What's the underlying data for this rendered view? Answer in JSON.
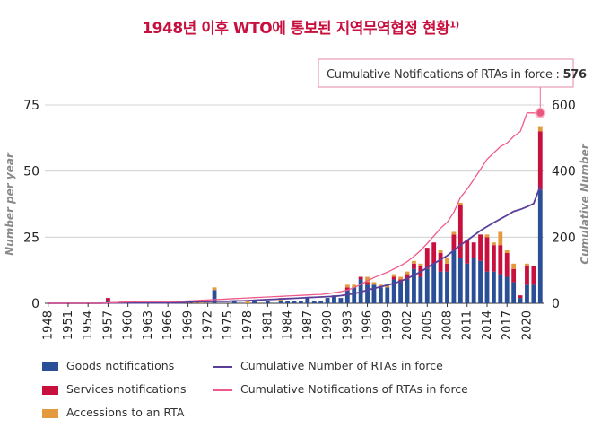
{
  "title": "1948년 이후 WTO에 통보된 지역무역협정 현황",
  "title_footnote": "1)",
  "callout": {
    "label": "Cumulative Notifications of RTAs in force : ",
    "value": "576"
  },
  "chart_data": {
    "type": "bar",
    "ylabel": "Number per year",
    "y2label": "Cumulative Number",
    "ylim": [
      0,
      75
    ],
    "y2lim": [
      0,
      600
    ],
    "yticks": [
      0,
      25,
      50,
      75
    ],
    "y2ticks": [
      0,
      200,
      400,
      600
    ],
    "xtick_labels": [
      "1948",
      "1951",
      "1954",
      "1957",
      "1960",
      "1963",
      "1966",
      "1969",
      "1972",
      "1975",
      "1978",
      "1981",
      "1984",
      "1987",
      "1990",
      "1993",
      "1996",
      "1999",
      "2002",
      "2005",
      "2008",
      "2011",
      "2014",
      "2017",
      "2020"
    ],
    "x": [
      1948,
      1949,
      1950,
      1951,
      1952,
      1953,
      1954,
      1955,
      1956,
      1957,
      1958,
      1959,
      1960,
      1961,
      1962,
      1963,
      1964,
      1965,
      1966,
      1967,
      1968,
      1969,
      1970,
      1971,
      1972,
      1973,
      1974,
      1975,
      1976,
      1977,
      1978,
      1979,
      1980,
      1981,
      1982,
      1983,
      1984,
      1985,
      1986,
      1987,
      1988,
      1989,
      1990,
      1991,
      1992,
      1993,
      1994,
      1995,
      1996,
      1997,
      1998,
      1999,
      2000,
      2001,
      2002,
      2003,
      2004,
      2005,
      2006,
      2007,
      2008,
      2009,
      2010,
      2011,
      2012,
      2013,
      2014,
      2015,
      2016,
      2017,
      2018,
      2019,
      2020,
      2021,
      2022
    ],
    "series": [
      {
        "name": "Goods notifications",
        "color": "#2a4f97",
        "kind": "bar",
        "values": [
          0,
          0,
          0,
          0,
          0,
          0,
          0,
          0,
          0,
          1,
          0,
          0,
          0,
          0,
          0,
          0,
          0,
          0,
          0,
          0,
          0,
          0,
          0,
          0,
          0,
          5,
          0,
          0,
          1,
          0,
          0,
          1,
          0,
          1,
          0,
          1,
          1,
          1,
          1,
          2,
          1,
          1,
          2,
          3,
          2,
          5,
          6,
          9,
          7,
          7,
          6,
          6,
          9,
          8,
          9,
          13,
          10,
          13,
          15,
          12,
          12,
          20,
          17,
          15,
          17,
          16,
          12,
          12,
          11,
          10,
          8,
          2,
          7,
          7,
          43
        ]
      },
      {
        "name": "Services notifications",
        "color": "#c8103e",
        "kind": "bar",
        "values": [
          0,
          0,
          0,
          0,
          0,
          0,
          0,
          0,
          0,
          1,
          0,
          0,
          0,
          0,
          0,
          0,
          0,
          0,
          0,
          0,
          0,
          0,
          0,
          0,
          0,
          0,
          0,
          0,
          0,
          0,
          0,
          0,
          0,
          0,
          0,
          0,
          0,
          0,
          0,
          0,
          0,
          0,
          0,
          0,
          0,
          1,
          0,
          1,
          1,
          0,
          0,
          0,
          1,
          1,
          2,
          2,
          4,
          8,
          8,
          7,
          3,
          6,
          20,
          9,
          6,
          10,
          13,
          10,
          11,
          9,
          5,
          1,
          7,
          7,
          22
        ]
      },
      {
        "name": "Accessions to an RTA",
        "color": "#e39a3e",
        "kind": "bar",
        "values": [
          0,
          0,
          0,
          0,
          0,
          0,
          0,
          0,
          0,
          0,
          0,
          1,
          1,
          1,
          0,
          0,
          0,
          0,
          0,
          0,
          0,
          1,
          1,
          1,
          0,
          1,
          0,
          0,
          0,
          0,
          1,
          0,
          0,
          0,
          0,
          1,
          0,
          0,
          0,
          0,
          0,
          0,
          0,
          0,
          0,
          1,
          1,
          0,
          2,
          1,
          1,
          1,
          1,
          1,
          1,
          1,
          1,
          0,
          0,
          1,
          2,
          1,
          1,
          0,
          0,
          0,
          1,
          1,
          5,
          1,
          2,
          0,
          1,
          0,
          2
        ]
      },
      {
        "name": "Cumulative Number of RTAs in force",
        "color": "#5a3f9a",
        "kind": "line",
        "values": [
          0,
          0,
          0,
          0,
          0,
          0,
          0,
          0,
          0,
          1,
          1,
          1,
          1,
          1,
          1,
          1,
          1,
          1,
          1,
          2,
          2,
          3,
          4,
          5,
          5,
          6,
          6,
          6,
          7,
          7,
          8,
          9,
          10,
          11,
          12,
          13,
          14,
          15,
          16,
          17,
          18,
          19,
          20,
          21,
          23,
          26,
          29,
          34,
          40,
          45,
          50,
          55,
          60,
          67,
          75,
          85,
          95,
          108,
          120,
          132,
          144,
          160,
          176,
          190,
          205,
          220,
          232,
          244,
          255,
          266,
          278,
          284,
          292,
          302,
          355
        ]
      },
      {
        "name": "Cumulative Notifications of RTAs in force",
        "color": "#ee5a8a",
        "kind": "line",
        "values": [
          0,
          0,
          0,
          0,
          0,
          0,
          0,
          0,
          0,
          2,
          2,
          3,
          4,
          5,
          5,
          5,
          5,
          5,
          5,
          5,
          6,
          7,
          8,
          9,
          10,
          11,
          12,
          13,
          14,
          15,
          16,
          17,
          18,
          19,
          20,
          21,
          22,
          23,
          24,
          25,
          26,
          27,
          29,
          32,
          35,
          40,
          47,
          57,
          68,
          78,
          86,
          94,
          104,
          114,
          126,
          142,
          160,
          181,
          204,
          227,
          245,
          275,
          320,
          345,
          375,
          405,
          436,
          455,
          474,
          485,
          505,
          520,
          576,
          576,
          576
        ]
      }
    ]
  },
  "legend": [
    {
      "label": "Goods notifications",
      "kind": "swatch",
      "color": "#2a4f97"
    },
    {
      "label": "Services notifications",
      "kind": "swatch",
      "color": "#c8103e"
    },
    {
      "label": "Accessions to an RTA",
      "kind": "swatch",
      "color": "#e39a3e"
    },
    {
      "label": "Cumulative Number of RTAs in force",
      "kind": "line",
      "color": "#5a3f9a"
    },
    {
      "label": "Cumulative Notifications of RTAs in force",
      "kind": "line",
      "color": "#ee5a8a"
    }
  ]
}
